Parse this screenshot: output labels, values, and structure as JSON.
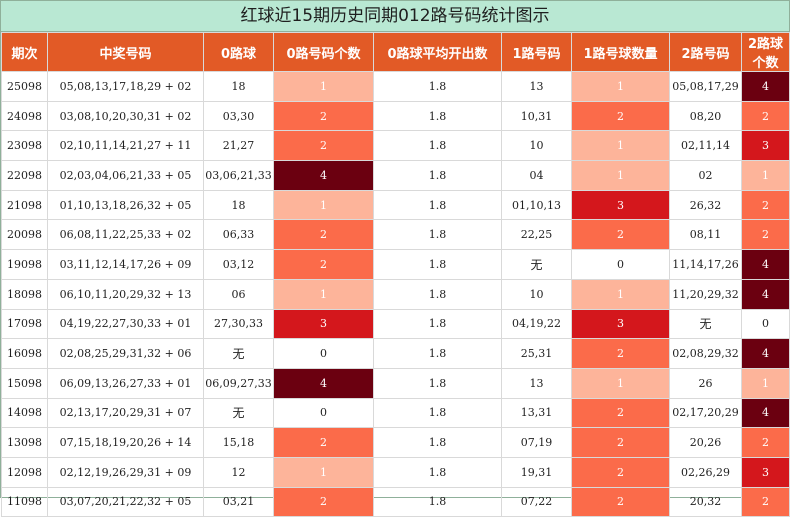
{
  "title": "红球近15期历史同期012路号码统计图示",
  "empty_text": "无",
  "colors": {
    "header_bg": "#e25a26",
    "title_bg": "#b9e8d3",
    "count_scale": [
      "#fff3ef",
      "#fdb49a",
      "#fb6b4a",
      "#d4171c",
      "#6b0010"
    ]
  },
  "chart_data": {
    "type": "table",
    "columns": [
      "期次",
      "中奖号码",
      "0路球",
      "0路号码个数",
      "0路球平均开出数",
      "1路号码",
      "1路号球数量",
      "2路号码",
      "2路球个数"
    ],
    "rows": [
      {
        "period": "25098",
        "numbers": "05,08,13,17,18,29 + 02",
        "r0": "18",
        "c0": 1,
        "avg": "1.8",
        "r1": "13",
        "c1": 1,
        "r2": "05,08,17,29",
        "c2": 4
      },
      {
        "period": "24098",
        "numbers": "03,08,10,20,30,31 + 02",
        "r0": "03,30",
        "c0": 2,
        "avg": "1.8",
        "r1": "10,31",
        "c1": 2,
        "r2": "08,20",
        "c2": 2
      },
      {
        "period": "23098",
        "numbers": "02,10,11,14,21,27 + 11",
        "r0": "21,27",
        "c0": 2,
        "avg": "1.8",
        "r1": "10",
        "c1": 1,
        "r2": "02,11,14",
        "c2": 3
      },
      {
        "period": "22098",
        "numbers": "02,03,04,06,21,33 + 05",
        "r0": "03,06,21,33",
        "c0": 4,
        "avg": "1.8",
        "r1": "04",
        "c1": 1,
        "r2": "02",
        "c2": 1
      },
      {
        "period": "21098",
        "numbers": "01,10,13,18,26,32 + 05",
        "r0": "18",
        "c0": 1,
        "avg": "1.8",
        "r1": "01,10,13",
        "c1": 3,
        "r2": "26,32",
        "c2": 2
      },
      {
        "period": "20098",
        "numbers": "06,08,11,22,25,33 + 02",
        "r0": "06,33",
        "c0": 2,
        "avg": "1.8",
        "r1": "22,25",
        "c1": 2,
        "r2": "08,11",
        "c2": 2
      },
      {
        "period": "19098",
        "numbers": "03,11,12,14,17,26 + 09",
        "r0": "03,12",
        "c0": 2,
        "avg": "1.8",
        "r1": "",
        "c1": 0,
        "r2": "11,14,17,26",
        "c2": 4
      },
      {
        "period": "18098",
        "numbers": "06,10,11,20,29,32 + 13",
        "r0": "06",
        "c0": 1,
        "avg": "1.8",
        "r1": "10",
        "c1": 1,
        "r2": "11,20,29,32",
        "c2": 4
      },
      {
        "period": "17098",
        "numbers": "04,19,22,27,30,33 + 01",
        "r0": "27,30,33",
        "c0": 3,
        "avg": "1.8",
        "r1": "04,19,22",
        "c1": 3,
        "r2": "",
        "c2": 0
      },
      {
        "period": "16098",
        "numbers": "02,08,25,29,31,32 + 06",
        "r0": "",
        "c0": 0,
        "avg": "1.8",
        "r1": "25,31",
        "c1": 2,
        "r2": "02,08,29,32",
        "c2": 4
      },
      {
        "period": "15098",
        "numbers": "06,09,13,26,27,33 + 01",
        "r0": "06,09,27,33",
        "c0": 4,
        "avg": "1.8",
        "r1": "13",
        "c1": 1,
        "r2": "26",
        "c2": 1
      },
      {
        "period": "14098",
        "numbers": "02,13,17,20,29,31 + 07",
        "r0": "",
        "c0": 0,
        "avg": "1.8",
        "r1": "13,31",
        "c1": 2,
        "r2": "02,17,20,29",
        "c2": 4
      },
      {
        "period": "13098",
        "numbers": "07,15,18,19,20,26 + 14",
        "r0": "15,18",
        "c0": 2,
        "avg": "1.8",
        "r1": "07,19",
        "c1": 2,
        "r2": "20,26",
        "c2": 2
      },
      {
        "period": "12098",
        "numbers": "02,12,19,26,29,31 + 09",
        "r0": "12",
        "c0": 1,
        "avg": "1.8",
        "r1": "19,31",
        "c1": 2,
        "r2": "02,26,29",
        "c2": 3
      },
      {
        "period": "11098",
        "numbers": "03,07,20,21,22,32 + 05",
        "r0": "03,21",
        "c0": 2,
        "avg": "1.8",
        "r1": "07,22",
        "c1": 2,
        "r2": "20,32",
        "c2": 2
      }
    ]
  }
}
